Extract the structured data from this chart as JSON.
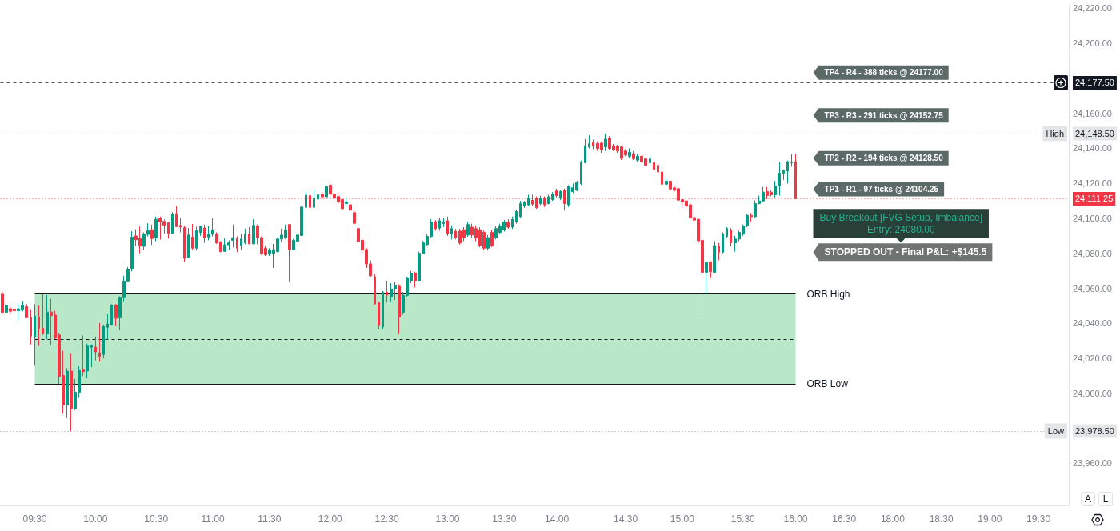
{
  "chart_data": {
    "type": "candlestick",
    "categories": [
      null,
      null,
      null,
      null,
      null,
      null,
      null,
      null,
      "09:30",
      null,
      null,
      null,
      null,
      null,
      null,
      null,
      null,
      null,
      null,
      null,
      null,
      null,
      null,
      "10:00",
      null,
      null,
      null,
      null,
      null,
      null,
      null,
      null,
      null,
      null,
      null,
      null,
      null,
      null,
      "10:30",
      null,
      null,
      null,
      null,
      null,
      null,
      null,
      null,
      null,
      null,
      null,
      null,
      null,
      "11:00",
      null,
      null,
      null,
      null,
      null,
      null,
      null,
      null,
      null,
      null,
      null,
      null,
      null,
      "11:30",
      null,
      null,
      null,
      null,
      null,
      null,
      null,
      null,
      null,
      null,
      null,
      null,
      null,
      null,
      "12:00",
      null,
      null,
      null,
      null,
      null,
      null,
      null,
      null,
      null,
      null,
      null,
      null,
      null,
      "12:30",
      null,
      null,
      null,
      null,
      null,
      null,
      null,
      null,
      null,
      null,
      null,
      null,
      null,
      null,
      "13:00",
      null,
      null,
      null,
      null,
      null,
      null,
      null,
      null,
      null,
      null,
      null,
      null,
      null,
      "13:30",
      null,
      null,
      null,
      null,
      null,
      null,
      null,
      null,
      null,
      null,
      null,
      null,
      "14:00",
      null,
      null,
      null,
      null,
      null,
      null,
      null,
      null,
      null,
      null,
      null,
      null,
      null,
      null,
      null,
      null,
      "14:30",
      null,
      null,
      null,
      null,
      null,
      null,
      null,
      null,
      null,
      null,
      null,
      null,
      null,
      "15:00",
      null,
      null,
      null,
      null,
      null,
      null,
      null,
      null,
      null,
      null,
      null,
      null,
      null,
      null,
      "15:30",
      null,
      null,
      null,
      null,
      null,
      null,
      null,
      null,
      null,
      null,
      null,
      null,
      "16:00",
      null,
      null,
      null,
      null,
      null,
      null,
      null,
      null,
      null,
      null,
      null,
      "16:30",
      null,
      null,
      null,
      null,
      null,
      null,
      null,
      null,
      null,
      null,
      null,
      "18:00",
      null,
      null,
      null,
      null,
      null,
      null,
      null,
      null,
      null,
      null,
      null,
      "18:30",
      null,
      null,
      null,
      null,
      null,
      null,
      null,
      null,
      null,
      null,
      null,
      "19:00",
      null,
      null,
      null,
      null,
      null,
      null,
      null,
      null,
      null,
      null,
      null,
      "19:30",
      null,
      null,
      null,
      null,
      null,
      null,
      null
    ],
    "ohlc": [
      [
        24056.7,
        24058.5,
        24045.4,
        24046.2
      ],
      [
        24046.2,
        24051.4,
        24045.1,
        24050.4
      ],
      [
        24048.4,
        24050,
        24045,
        24046.9
      ],
      [
        24048,
        24052,
        24046,
        24047.2
      ],
      [
        24047.2,
        24051.4,
        24041.7,
        24048.4
      ],
      [
        24047.7,
        24052.5,
        24046.9,
        24050.4
      ],
      [
        24049.5,
        24051,
        24042.9,
        24043.2
      ],
      [
        24043.2,
        24047.7,
        24027.9,
        24032.7
      ],
      [
        24032.2,
        24051,
        24015.7,
        24044.2
      ],
      [
        24043.6,
        24050.2,
        24027.1,
        24037.2
      ],
      [
        24037.2,
        24056.75,
        24033.4,
        24033.9
      ],
      [
        24033.9,
        24056.2,
        24031,
        24046.5
      ],
      [
        24046.5,
        24054,
        24027.4,
        24044.4
      ],
      [
        24044.7,
        24047.2,
        24031,
        24031.6
      ],
      [
        24033.4,
        24034.2,
        24005.5,
        24009.7
      ],
      [
        24010.2,
        24024.4,
        23988.4,
        23993.3
      ],
      [
        23993.3,
        24014.4,
        23985.8,
        24012.7
      ],
      [
        24012.7,
        24022.6,
        23978.5,
        23991.1
      ],
      [
        23991.1,
        24008.3,
        23990.5,
        24000.7
      ],
      [
        24000.7,
        24015.4,
        23997.4,
        24013.1
      ],
      [
        24013.6,
        24033.1,
        24009.9,
        24012.4
      ],
      [
        24012.8,
        24028.5,
        24008.6,
        24027
      ],
      [
        24026.4,
        24027.9,
        24015,
        24027.4
      ],
      [
        24026.4,
        24032.4,
        24018.9,
        24023.7
      ],
      [
        24023.2,
        24040.2,
        24018.1,
        24021.1
      ],
      [
        24022.2,
        24039,
        24019.9,
        24038.2
      ],
      [
        24037.7,
        24045.1,
        24030.7,
        24039.7
      ],
      [
        24039,
        24051,
        24038.7,
        24050.4
      ],
      [
        24050.4,
        24051,
        24038.4,
        24042.9
      ],
      [
        24043.2,
        24055.5,
        24036,
        24054.7
      ],
      [
        24054.7,
        24067.2,
        24052.2,
        24063.8
      ],
      [
        24063.8,
        24072.2,
        24063.5,
        24071
      ],
      [
        24071.3,
        24092.7,
        24069.8,
        24089.3
      ],
      [
        24090,
        24093.9,
        24084,
        24087.8
      ],
      [
        24088.5,
        24095.3,
        24080,
        24084.2
      ],
      [
        24084,
        24092,
        24082.2,
        24091.2
      ],
      [
        24090.9,
        24097.2,
        24089.7,
        24093
      ],
      [
        24093.5,
        24096.5,
        24084.8,
        24088.5
      ],
      [
        24089,
        24101,
        24087,
        24099.5
      ],
      [
        24100.2,
        24101,
        24087.9,
        24098
      ],
      [
        24098.3,
        24099.5,
        24091.2,
        24096
      ],
      [
        24097.5,
        24098,
        24088.5,
        24091.5
      ],
      [
        24091.5,
        24103.5,
        24091.2,
        24102.5
      ],
      [
        24102.8,
        24107,
        24095,
        24095.3
      ],
      [
        24096,
        24100.5,
        24092,
        24095
      ],
      [
        24094.7,
        24095.7,
        24075,
        24077.3
      ],
      [
        24077.7,
        24094.5,
        24077.4,
        24090.5
      ],
      [
        24089.3,
        24096.8,
        24082.2,
        24083
      ],
      [
        24083,
        24095.3,
        24082,
        24093
      ],
      [
        24092,
        24095.8,
        24090,
        24095.3
      ],
      [
        24094.5,
        24096.5,
        24086,
        24089
      ],
      [
        24089.4,
        24095.7,
        24087.5,
        24091
      ],
      [
        24091,
        24100,
        24089.7,
        24093.5
      ],
      [
        24091.2,
        24092,
        24085.5,
        24086
      ],
      [
        24086.4,
        24087,
        24080.7,
        24081
      ],
      [
        24081.2,
        24088.5,
        24081,
        24084.9
      ],
      [
        24084.9,
        24087.5,
        24082.2,
        24086
      ],
      [
        24087.5,
        24096.5,
        24083.4,
        24089
      ],
      [
        24089,
        24089.7,
        24080.7,
        24083
      ],
      [
        24084.5,
        24091.2,
        24082.2,
        24088.2
      ],
      [
        24086,
        24094.2,
        24085.2,
        24091
      ],
      [
        24091,
        24095,
        24085.2,
        24085.5
      ],
      [
        24085.5,
        24099.5,
        24085.2,
        24096
      ],
      [
        24095.7,
        24096.5,
        24085.2,
        24089
      ],
      [
        24089,
        24089.7,
        24079.2,
        24080
      ],
      [
        24083,
        24084.5,
        24078.5,
        24079.2
      ],
      [
        24080,
        24083,
        24078.5,
        24081.9
      ],
      [
        24080,
        24085.5,
        24071.7,
        24082.2
      ],
      [
        24081,
        24089,
        24080.7,
        24088.2
      ],
      [
        24088.2,
        24094.2,
        24086.8,
        24090.5
      ],
      [
        24089,
        24096.5,
        24088.2,
        24093.5
      ],
      [
        24096.5,
        24096.8,
        24063.5,
        24082.2
      ],
      [
        24082,
        24088.2,
        24081.9,
        24087.5
      ],
      [
        24087,
        24091.2,
        24086.5,
        24090.5
      ],
      [
        24090.2,
        24109.3,
        24090,
        24106.5
      ],
      [
        24106.3,
        24115.3,
        24106,
        24113.3
      ],
      [
        24113,
        24116,
        24105.5,
        24106.3
      ],
      [
        24106.3,
        24116,
        24106,
        24111.5
      ],
      [
        24111,
        24114.5,
        24106.5,
        24113.5
      ],
      [
        24113.8,
        24115,
        24111,
        24112.3
      ],
      [
        24112.3,
        24121.3,
        24112,
        24118.3
      ],
      [
        24119,
        24119.8,
        24113.5,
        24113.8
      ],
      [
        24113.8,
        24114.5,
        24110.8,
        24111.5
      ],
      [
        24112.5,
        24114.5,
        24108.5,
        24109.3
      ],
      [
        24110.8,
        24112,
        24105,
        24105.5
      ],
      [
        24108.5,
        24111.5,
        24107,
        24109.5
      ],
      [
        24107.8,
        24109,
        24104,
        24104.7
      ],
      [
        24103.3,
        24104.5,
        24096.5,
        24097.2
      ],
      [
        24094.2,
        24096,
        24085.5,
        24086.7
      ],
      [
        24087.5,
        24088,
        24080.5,
        24082.2
      ],
      [
        24082.2,
        24083,
        24071.7,
        24074
      ],
      [
        24074,
        24076,
        24066.5,
        24067.2
      ],
      [
        24066.5,
        24068,
        24050.5,
        24051.2
      ],
      [
        24051.8,
        24052,
        24036.5,
        24038.7
      ],
      [
        24038,
        24058.5,
        24036.5,
        24057.9
      ],
      [
        24057.8,
        24064.2,
        24052,
        24056.2
      ],
      [
        24055.2,
        24063,
        24052,
        24059.7
      ],
      [
        24059.7,
        24063.5,
        24053.5,
        24061.5
      ],
      [
        24061.2,
        24062.3,
        24033.7,
        24043.6
      ],
      [
        24046.2,
        24058,
        24045,
        24056
      ],
      [
        24056,
        24066.5,
        24055,
        24065.7
      ],
      [
        24064.2,
        24070,
        24063,
        24068.7
      ],
      [
        24068.7,
        24069.5,
        24060.5,
        24064.2
      ],
      [
        24064.2,
        24081,
        24064,
        24080
      ],
      [
        24080,
        24087,
        24079.5,
        24086
      ],
      [
        24085,
        24091,
        24084.5,
        24089.7
      ],
      [
        24089.7,
        24099.5,
        24089,
        24098
      ],
      [
        24098,
        24099,
        24093,
        24094.2
      ],
      [
        24094.5,
        24100.5,
        24093,
        24098.7
      ],
      [
        24097,
        24100,
        24095,
        24098
      ],
      [
        24098.7,
        24101,
        24090,
        24091.2
      ],
      [
        24091,
        24096,
        24088,
        24094.2
      ],
      [
        24092.7,
        24094,
        24088,
        24089
      ],
      [
        24092.7,
        24094,
        24085,
        24086
      ],
      [
        24093.5,
        24095,
        24087,
        24089
      ],
      [
        24090.5,
        24098,
        24089.5,
        24096.5
      ],
      [
        24095,
        24097,
        24089,
        24090.5
      ],
      [
        24094.2,
        24096,
        24087,
        24089
      ],
      [
        24093.5,
        24095,
        24083.5,
        24084.5
      ],
      [
        24092,
        24093,
        24082,
        24083
      ],
      [
        24083,
        24090.5,
        24082,
        24089
      ],
      [
        24092,
        24093.5,
        24083.5,
        24084.5
      ],
      [
        24089,
        24095.5,
        24088,
        24094.2
      ],
      [
        24092,
        24097,
        24091,
        24095.7
      ],
      [
        24093.5,
        24099,
        24092.5,
        24098
      ],
      [
        24098,
        24099.5,
        24094,
        24095
      ],
      [
        24095,
        24101,
        24094,
        24099.5
      ],
      [
        24098,
        24105,
        24097,
        24104
      ],
      [
        24101,
        24110,
        24100,
        24108.5
      ],
      [
        24107,
        24110,
        24106,
        24109.3
      ],
      [
        24107.8,
        24113.5,
        24107,
        24111.5
      ],
      [
        24110.3,
        24113.5,
        24107,
        24108.2
      ],
      [
        24111.5,
        24112.5,
        24105.5,
        24106.2
      ],
      [
        24108.5,
        24113,
        24107.5,
        24111.5
      ],
      [
        24111.5,
        24112.5,
        24106.5,
        24107.8
      ],
      [
        24108.5,
        24113.5,
        24108,
        24112.3
      ],
      [
        24110.8,
        24115,
        24110,
        24113.8
      ],
      [
        24115.7,
        24117,
        24112,
        24113
      ],
      [
        24111.5,
        24116,
        24110.5,
        24115.3
      ],
      [
        24116,
        24117,
        24104.5,
        24108.5
      ],
      [
        24107.8,
        24119,
        24106.5,
        24118.3
      ],
      [
        24115.3,
        24120,
        24114.5,
        24117.5
      ],
      [
        24116,
        24121.5,
        24115.5,
        24120.5
      ],
      [
        24119.8,
        24133,
        24119,
        24131.8
      ],
      [
        24131.8,
        24145.3,
        24131.5,
        24141.5
      ],
      [
        24140.8,
        24147.5,
        24140,
        24142.7
      ],
      [
        24143.3,
        24145,
        24139.5,
        24141.5
      ],
      [
        24142.7,
        24144,
        24138.5,
        24140
      ],
      [
        24143,
        24144,
        24137.5,
        24139.3
      ],
      [
        24140.8,
        24148.5,
        24138.5,
        24145.3
      ],
      [
        24146,
        24147,
        24139,
        24140
      ],
      [
        24141.5,
        24142.5,
        24138.5,
        24139.3
      ],
      [
        24141.2,
        24142,
        24137.5,
        24138.5
      ],
      [
        24140.8,
        24141.5,
        24133.3,
        24134.3
      ],
      [
        24138.5,
        24139.5,
        24135.5,
        24136.3
      ],
      [
        24135.5,
        24140,
        24134.5,
        24137.8
      ],
      [
        24137,
        24138.5,
        24133.3,
        24134
      ],
      [
        24133.3,
        24137,
        24132.5,
        24135.5
      ],
      [
        24135.5,
        24136.5,
        24131.5,
        24132.5
      ],
      [
        24134,
        24135,
        24129.5,
        24130.3
      ],
      [
        24131.8,
        24135.5,
        24131,
        24134
      ],
      [
        24131.8,
        24133,
        24127,
        24128
      ],
      [
        24130.3,
        24131.5,
        24125.5,
        24126.5
      ],
      [
        24126.5,
        24128,
        24119,
        24119.5
      ],
      [
        24119.5,
        24123,
        24118.5,
        24121.3
      ],
      [
        24121.3,
        24122,
        24116,
        24116.8
      ],
      [
        24117.5,
        24119,
        24115,
        24116
      ],
      [
        24117,
        24118,
        24108,
        24110.4
      ],
      [
        24110.7,
        24111,
        24106.5,
        24109.5
      ],
      [
        24110,
        24111,
        24106,
        24107
      ],
      [
        24107.8,
        24109,
        24100,
        24100.2
      ],
      [
        24100.5,
        24101,
        24098,
        24099
      ],
      [
        24099.5,
        24100,
        24085.5,
        24087.2
      ],
      [
        24087.5,
        24088,
        24045,
        24069.2
      ],
      [
        24069.2,
        24075.5,
        24056.7,
        24074.7
      ],
      [
        24075,
        24075.5,
        24066,
        24069.5
      ],
      [
        24069.2,
        24087,
        24069,
        24084.5
      ],
      [
        24084,
        24086,
        24076,
        24080.7
      ],
      [
        24080.7,
        24092,
        24080,
        24091.2
      ],
      [
        24089.7,
        24095,
        24089,
        24094.2
      ],
      [
        24093.5,
        24094.5,
        24084,
        24086
      ],
      [
        24086,
        24090,
        24081,
        24088.2
      ],
      [
        24088.2,
        24093,
        24087,
        24092
      ],
      [
        24091.2,
        24096.5,
        24090,
        24095.7
      ],
      [
        24095.7,
        24102.5,
        24095,
        24101.7
      ],
      [
        24101.7,
        24103,
        24098,
        24101
      ],
      [
        24101,
        24110.3,
        24100.5,
        24108.5
      ],
      [
        24108.5,
        24113,
        24108,
        24110
      ],
      [
        24110,
        24118,
        24109.5,
        24115
      ],
      [
        24115.3,
        24118,
        24111,
        24113
      ],
      [
        24115,
        24116,
        24112.5,
        24113.5
      ],
      [
        24113.5,
        24121.5,
        24112,
        24118.6
      ],
      [
        24118.6,
        24132,
        24113,
        24125.8
      ],
      [
        24125.8,
        24128,
        24122,
        24127.3
      ],
      [
        24127,
        24133,
        24120,
        24132.5
      ],
      [
        24131.8,
        24136.8,
        24129.5,
        24132
      ],
      [
        24132.5,
        24137,
        24111.25,
        24111.25
      ],
      null,
      null,
      null,
      null,
      null,
      null,
      null,
      null,
      null,
      null,
      null,
      null,
      null,
      null,
      null,
      null,
      null,
      null,
      null,
      null,
      null,
      null,
      null,
      null,
      null,
      null,
      null,
      null,
      null,
      null,
      null,
      null,
      null,
      null,
      null,
      null,
      null,
      null,
      null,
      null,
      null,
      null,
      null,
      null,
      null,
      null,
      null,
      null,
      null,
      null,
      null,
      null,
      null,
      null,
      null,
      null,
      null,
      null,
      null,
      null,
      null,
      null,
      null,
      null,
      null,
      null,
      null
    ],
    "ylim": [
      23936,
      24222
    ],
    "yticks": [
      {
        "value": 23960,
        "label": "23,960.00"
      },
      {
        "value": 23978.5,
        "label": "23,978.50"
      },
      {
        "value": 24000,
        "label": "24,000.00"
      },
      {
        "value": 24020,
        "label": "24,020.00"
      },
      {
        "value": 24040,
        "label": "24,040.00"
      },
      {
        "value": 24060,
        "label": "24,060.00"
      },
      {
        "value": 24080,
        "label": "24,080.00"
      },
      {
        "value": 24100,
        "label": "24,100.00"
      },
      {
        "value": 24111.25,
        "label": "24,111.25"
      },
      {
        "value": 24120,
        "label": "24,120.00"
      },
      {
        "value": 24140,
        "label": "24,140.00"
      },
      {
        "value": 24148.5,
        "label": "24,148.50"
      },
      {
        "value": 24160,
        "label": "24,160.00"
      },
      {
        "value": 24177.5,
        "label": "24,177.50"
      },
      {
        "value": 24200,
        "label": "24,200.00"
      },
      {
        "value": 24220,
        "label": "24,220.00"
      }
    ],
    "ref_lines": [
      {
        "axis": "y",
        "value": 24177.5,
        "color": "#131722",
        "line_style": "dashed"
      },
      {
        "axis": "y",
        "value": 24148.5,
        "label": "High",
        "color": "#787b86",
        "line_style": "dotted"
      },
      {
        "axis": "y",
        "value": 24111.25,
        "color": "#f23645",
        "line_style": "dotted"
      },
      {
        "axis": "y",
        "value": 23978.5,
        "label": "Low",
        "color": "#787b86",
        "line_style": "dotted"
      },
      {
        "axis": "y",
        "value": 24056.75,
        "label": "ORB High",
        "color": "#131722"
      },
      {
        "axis": "y",
        "value": 24031,
        "color": "#131722",
        "line_style": "dashed"
      },
      {
        "axis": "y",
        "value": 24005.5,
        "label": "ORB Low",
        "color": "#131722"
      }
    ],
    "bands": [
      {
        "axis": "y",
        "from": 24005.5,
        "to": 24056.75,
        "color": "#b9e8c9"
      }
    ],
    "annotations": [
      "TP4 - R4 - 388 ticks @ 24177.00",
      "TP3 - R3 - 291 ticks @ 24152.75",
      "TP2 - R2 - 194 ticks @ 24128.50",
      "TP1 - R1 - 97 ticks @ 24104.25",
      "Buy Breakout [FVG Setup, Imbalance]\nEntry: 24080.00",
      "STOPPED OUT - Final P&L: +$145.5",
      "A",
      "L"
    ]
  }
}
